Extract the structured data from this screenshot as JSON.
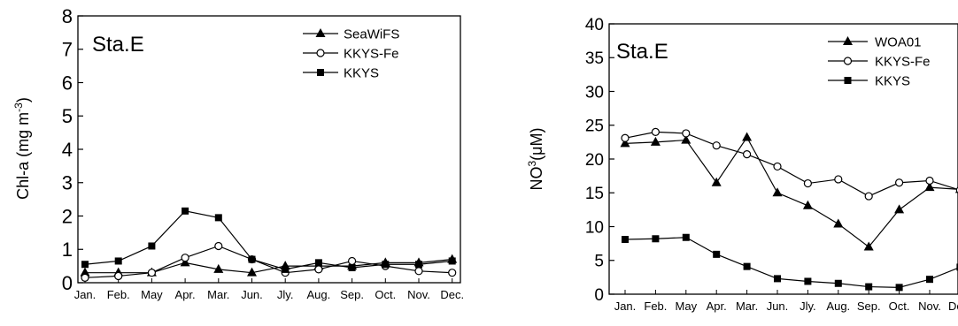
{
  "chart_data": [
    {
      "type": "line",
      "panel_label": "Sta.E",
      "ylabel": "Chl-a (mg m^-3)",
      "ylabel_main": "Chl-a (mg m",
      "ylabel_exp": "-3",
      "ylabel_close": ")",
      "ylim": [
        0,
        8
      ],
      "yticks": [
        "0",
        "1",
        "2",
        "3",
        "4",
        "5",
        "6",
        "7",
        "8"
      ],
      "categories": [
        "Jan.",
        "Feb.",
        "May",
        "Apr.",
        "Mar.",
        "Jun.",
        "Jly.",
        "Aug.",
        "Sep.",
        "Oct.",
        "Nov.",
        "Dec."
      ],
      "legend_position": "top-right",
      "grid": false,
      "series": [
        {
          "name": "SeaWiFS",
          "marker": "triangle",
          "values": [
            0.3,
            0.3,
            0.3,
            0.6,
            0.4,
            0.3,
            0.5,
            0.5,
            0.5,
            0.6,
            0.6,
            0.7
          ]
        },
        {
          "name": "KKYS-Fe",
          "marker": "circle-open",
          "values": [
            0.15,
            0.2,
            0.3,
            0.75,
            1.1,
            0.7,
            0.3,
            0.4,
            0.65,
            0.5,
            0.35,
            0.3
          ]
        },
        {
          "name": "KKYS",
          "marker": "square",
          "values": [
            0.55,
            0.65,
            1.1,
            2.15,
            1.95,
            0.7,
            0.4,
            0.6,
            0.45,
            0.55,
            0.55,
            0.65
          ]
        }
      ]
    },
    {
      "type": "line",
      "panel_label": "Sta.E",
      "ylabel": "NO3(μM)",
      "ylabel_main": "NO",
      "ylabel_exp": "3",
      "ylabel_close": "(μM)",
      "ylim": [
        0,
        40
      ],
      "yticks": [
        "0",
        "5",
        "10",
        "15",
        "20",
        "25",
        "30",
        "35",
        "40"
      ],
      "categories": [
        "Jan.",
        "Feb.",
        "May",
        "Apr.",
        "Mar.",
        "Jun.",
        "Jly.",
        "Aug.",
        "Sep.",
        "Oct.",
        "Nov.",
        "Dec."
      ],
      "legend_position": "top-right",
      "grid": false,
      "series": [
        {
          "name": "WOA01",
          "marker": "triangle",
          "values": [
            22.3,
            22.5,
            22.8,
            16.5,
            23.2,
            15.0,
            13.1,
            10.4,
            7.0,
            12.5,
            15.8,
            15.5
          ]
        },
        {
          "name": "KKYS-Fe",
          "marker": "circle-open",
          "values": [
            23.1,
            24.0,
            23.8,
            22.0,
            20.7,
            18.9,
            16.4,
            17.0,
            14.5,
            16.5,
            16.8,
            15.4
          ]
        },
        {
          "name": "KKYS",
          "marker": "square",
          "values": [
            8.1,
            8.2,
            8.4,
            5.9,
            4.1,
            2.3,
            1.9,
            1.6,
            1.1,
            1.0,
            2.2,
            4.0
          ]
        }
      ]
    }
  ]
}
